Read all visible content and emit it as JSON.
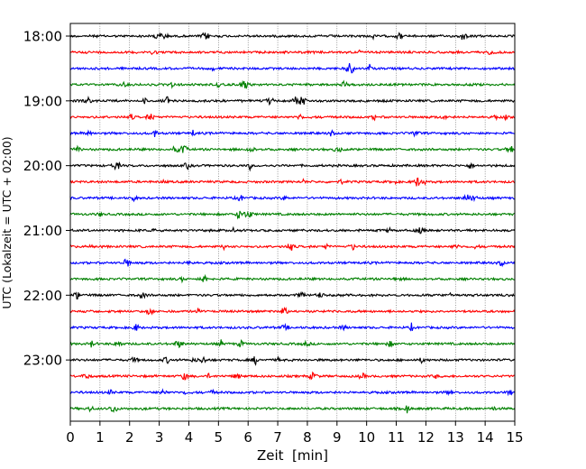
{
  "chart_data": {
    "type": "line",
    "title": "",
    "xlabel": "Zeit  [min]",
    "ylabel": "UTC (Lokalzeit = UTC + 02:00)",
    "xlim": [
      0,
      15
    ],
    "x_ticks": [
      "0",
      "1",
      "2",
      "3",
      "4",
      "5",
      "6",
      "7",
      "8",
      "9",
      "10",
      "11",
      "12",
      "13",
      "14",
      "15"
    ],
    "y_tick_labels": [
      "18:00",
      "19:00",
      "20:00",
      "21:00",
      "22:00",
      "23:00"
    ],
    "grid": "vertical dotted lines at each minute",
    "trace_interval_minutes": 15,
    "trace_start": "18:00",
    "color_cycle": [
      "#000000",
      "#ff0000",
      "#0000ff",
      "#008000"
    ],
    "series": [
      {
        "start": "18:00",
        "color": "#000000"
      },
      {
        "start": "18:15",
        "color": "#ff0000"
      },
      {
        "start": "18:30",
        "color": "#0000ff"
      },
      {
        "start": "18:45",
        "color": "#008000"
      },
      {
        "start": "19:00",
        "color": "#000000"
      },
      {
        "start": "19:15",
        "color": "#ff0000"
      },
      {
        "start": "19:30",
        "color": "#0000ff"
      },
      {
        "start": "19:45",
        "color": "#008000"
      },
      {
        "start": "20:00",
        "color": "#000000"
      },
      {
        "start": "20:15",
        "color": "#ff0000"
      },
      {
        "start": "20:30",
        "color": "#0000ff"
      },
      {
        "start": "20:45",
        "color": "#008000"
      },
      {
        "start": "21:00",
        "color": "#000000"
      },
      {
        "start": "21:15",
        "color": "#ff0000"
      },
      {
        "start": "21:30",
        "color": "#0000ff"
      },
      {
        "start": "21:45",
        "color": "#008000"
      },
      {
        "start": "22:00",
        "color": "#000000"
      },
      {
        "start": "22:15",
        "color": "#ff0000"
      },
      {
        "start": "22:30",
        "color": "#0000ff"
      },
      {
        "start": "22:45",
        "color": "#008000"
      },
      {
        "start": "23:00",
        "color": "#000000"
      },
      {
        "start": "23:15",
        "color": "#ff0000"
      },
      {
        "start": "23:30",
        "color": "#0000ff"
      },
      {
        "start": "23:45",
        "color": "#008000"
      }
    ]
  }
}
